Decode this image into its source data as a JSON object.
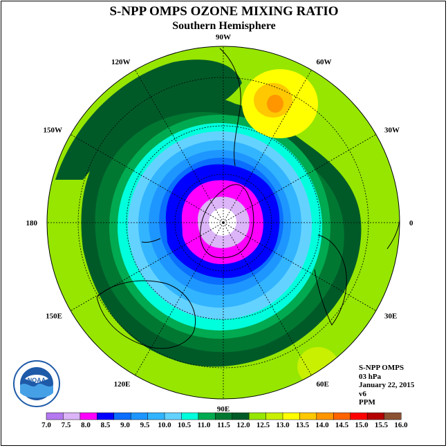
{
  "title": "S-NPP OMPS OZONE MIXING RATIO",
  "subtitle": "Southern Hemisphere",
  "longitude_labels": [
    {
      "text": "0",
      "lon": 0
    },
    {
      "text": "30E",
      "lon": 30
    },
    {
      "text": "60E",
      "lon": 60
    },
    {
      "text": "90E",
      "lon": 90
    },
    {
      "text": "120E",
      "lon": 120
    },
    {
      "text": "150E",
      "lon": 150
    },
    {
      "text": "180",
      "lon": 180
    },
    {
      "text": "150W",
      "lon": -150
    },
    {
      "text": "120W",
      "lon": -120
    },
    {
      "text": "90W",
      "lon": -90
    },
    {
      "text": "60W",
      "lon": -60
    },
    {
      "text": "30W",
      "lon": -30
    }
  ],
  "info": {
    "instrument": "S-NPP OMPS",
    "level": "03 hPa",
    "date": "January 22, 2015",
    "version": "v6",
    "units": "PPM"
  },
  "logo_text": "NOAA",
  "colorbar": {
    "ticks": [
      "7.0",
      "7.5",
      "8.0",
      "8.5",
      "9.0",
      "9.5",
      "10.0",
      "10.5",
      "11.0",
      "11.5",
      "12.0",
      "12.5",
      "13.0",
      "13.5",
      "14.0",
      "14.5",
      "15.0",
      "15.5",
      "16.0"
    ],
    "colors": [
      "#b478f0",
      "#dcb4f8",
      "#ff00ff",
      "#0000ff",
      "#0a6eff",
      "#1e96ff",
      "#32b4ff",
      "#64d2ff",
      "#00ffdc",
      "#00aa50",
      "#007832",
      "#005a28",
      "#96e600",
      "#c8f000",
      "#ffff00",
      "#ffc800",
      "#ff9600",
      "#ff6400",
      "#ff0000",
      "#b40000",
      "#8c5032"
    ]
  },
  "map_colors": {
    "ocean_bg": "#96e600",
    "ring_dark": "#005a28",
    "ring_mid": "#007832",
    "ring_green": "#00aa50",
    "ring_cyan": "#00ffdc",
    "ring_lightblue": "#64d2ff",
    "ring_sky": "#32b4ff",
    "ring_blue1": "#1e96ff",
    "ring_blue2": "#0a6eff",
    "ring_blue": "#0000ff",
    "ring_magenta": "#ff00ff",
    "ring_lavender": "#dcb4f8",
    "center": "#ffffff",
    "hot_yellow": "#ffff00",
    "hot_orange": "#ffc800",
    "hot_deep": "#ff9600"
  }
}
